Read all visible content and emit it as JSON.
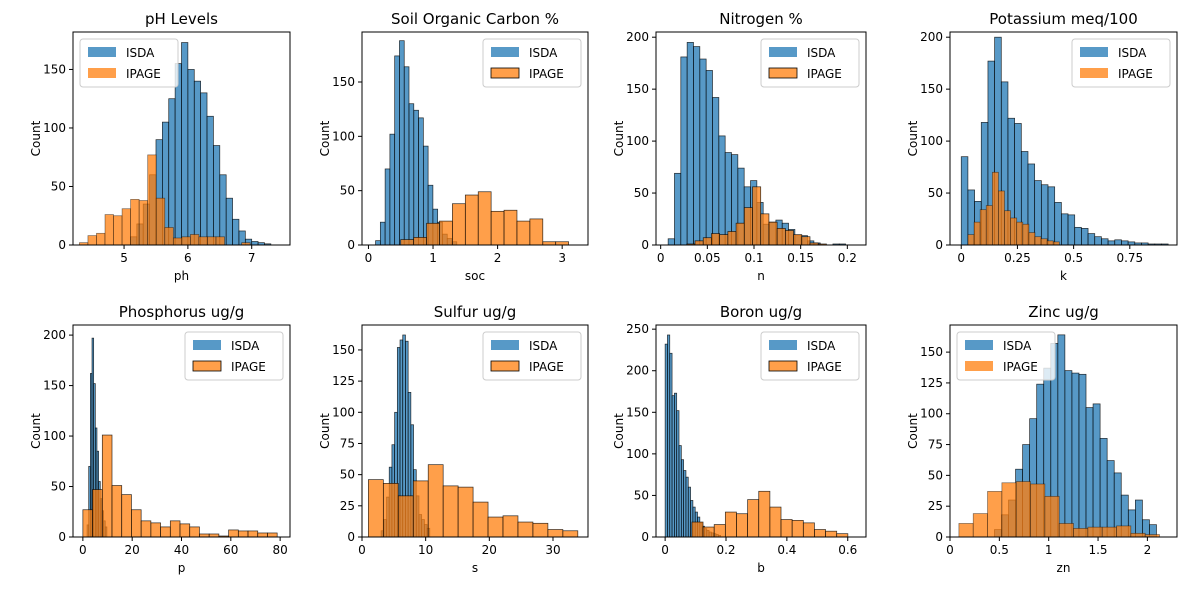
{
  "figure": {
    "rows": 2,
    "cols": 4
  },
  "colors": {
    "ISDA": "#1f77b4",
    "IPAGE": "#ff7f0e"
  },
  "chart_data": [
    {
      "type": "histogram",
      "title": "pH Levels",
      "xlabel": "ph",
      "ylabel": "Count",
      "xlim": [
        4.2,
        7.6
      ],
      "ylim": [
        0,
        182
      ],
      "xticks": [
        5,
        6,
        7
      ],
      "yticks": [
        0,
        50,
        100,
        150
      ],
      "legend": "top-left",
      "legend_outline_series": [],
      "series": [
        {
          "name": "ISDA",
          "start": 5.1,
          "width": 0.1,
          "values": [
            7,
            18,
            35,
            60,
            90,
            105,
            125,
            155,
            173,
            150,
            140,
            130,
            110,
            85,
            60,
            40,
            22,
            12,
            5,
            3,
            2,
            1
          ]
        },
        {
          "name": "IPAGE",
          "start": 4.3,
          "width": 0.1338,
          "values": [
            2,
            8,
            10,
            26,
            25,
            31,
            39,
            38,
            77,
            40,
            15,
            6,
            7,
            9,
            7,
            7,
            7,
            0,
            0,
            2
          ]
        }
      ]
    },
    {
      "type": "histogram",
      "title": "Soil Organic Carbon %",
      "xlabel": "soc",
      "ylabel": "Count",
      "xlim": [
        -0.1,
        3.4
      ],
      "ylim": [
        0,
        196
      ],
      "xticks": [
        0,
        1,
        2,
        3
      ],
      "yticks": [
        0,
        50,
        100,
        150
      ],
      "legend": "top-right",
      "legend_outline_series": [
        "IPAGE"
      ],
      "series": [
        {
          "name": "ISDA",
          "start": 0.11,
          "width": 0.074,
          "values": [
            4,
            21,
            70,
            102,
            174,
            188,
            164,
            130,
            124,
            117,
            91,
            55,
            33,
            21,
            10,
            6,
            3
          ]
        },
        {
          "name": "IPAGE",
          "start": 0.5,
          "width": 0.2,
          "values": [
            5,
            7,
            20,
            22,
            38,
            46,
            49,
            31,
            32,
            22,
            24,
            3,
            3
          ]
        }
      ]
    },
    {
      "type": "histogram",
      "title": "Nitrogen %",
      "xlabel": "n",
      "ylabel": "Count",
      "xlim": [
        -0.005,
        0.22
      ],
      "ylim": [
        0,
        205
      ],
      "xticks": [
        0,
        0.05,
        0.1,
        0.15,
        0.2
      ],
      "yticks": [
        0,
        50,
        100,
        150,
        200
      ],
      "legend": "top-right",
      "legend_outline_series": [
        "IPAGE"
      ],
      "series": [
        {
          "name": "ISDA",
          "start": 0.008,
          "width": 0.00679,
          "values": [
            6,
            69,
            181,
            195,
            191,
            179,
            168,
            142,
            105,
            89,
            87,
            74,
            56,
            62,
            41,
            20,
            22,
            24,
            21,
            15,
            9,
            9,
            4,
            2,
            0,
            0,
            1,
            1
          ]
        },
        {
          "name": "IPAGE",
          "start": 0.028,
          "width": 0.0088,
          "values": [
            1,
            4,
            7,
            11,
            10,
            13,
            21,
            36,
            56,
            30,
            22,
            16,
            14,
            10,
            8,
            2,
            1
          ]
        }
      ]
    },
    {
      "type": "histogram",
      "title": "Potassium meq/100",
      "xlabel": "k",
      "ylabel": "Count",
      "xlim": [
        -0.05,
        0.96
      ],
      "ylim": [
        0,
        205
      ],
      "xticks": [
        0,
        0.25,
        0.5,
        0.75
      ],
      "yticks": [
        0,
        50,
        100,
        150,
        200
      ],
      "legend": "top-right",
      "legend_outline_series": [],
      "series": [
        {
          "name": "ISDA",
          "start": 0,
          "width": 0.0297,
          "values": [
            85,
            53,
            42,
            118,
            177,
            200,
            157,
            122,
            117,
            90,
            78,
            62,
            58,
            56,
            41,
            30,
            29,
            17,
            16,
            11,
            8,
            6,
            4,
            5,
            4,
            3,
            2,
            2,
            1,
            1,
            1
          ]
        },
        {
          "name": "IPAGE",
          "start": 0.03,
          "width": 0.0271,
          "values": [
            10,
            22,
            34,
            38,
            70,
            52,
            33,
            26,
            22,
            20,
            12,
            8,
            6,
            4,
            3
          ]
        }
      ]
    },
    {
      "type": "histogram",
      "title": "Phosphorus ug/g",
      "xlabel": "p",
      "ylabel": "Count",
      "xlim": [
        -4,
        84
      ],
      "ylim": [
        0,
        210
      ],
      "xticks": [
        0,
        20,
        40,
        60,
        80
      ],
      "yticks": [
        0,
        50,
        100,
        150,
        200
      ],
      "legend": "top-right",
      "legend_outline_series": [
        "IPAGE"
      ],
      "series": [
        {
          "name": "ISDA",
          "start": 1.7,
          "width": 0.67,
          "values": [
            12,
            70,
            162,
            197,
            152,
            108,
            85,
            55,
            38,
            26,
            16,
            10
          ]
        },
        {
          "name": "IPAGE",
          "start": 0,
          "width": 3.94,
          "values": [
            27,
            47,
            101,
            51,
            42,
            27,
            16,
            14,
            10,
            16,
            13,
            10,
            3,
            3,
            1,
            7,
            6,
            6,
            4,
            4
          ]
        }
      ]
    },
    {
      "type": "histogram",
      "title": "Sulfur ug/g",
      "xlabel": "s",
      "ylabel": "Count",
      "xlim": [
        0,
        35.5
      ],
      "ylim": [
        0,
        170
      ],
      "xticks": [
        0,
        10,
        20,
        30
      ],
      "yticks": [
        0,
        25,
        50,
        75,
        100,
        125,
        150
      ],
      "legend": "top-right",
      "legend_outline_series": [
        "IPAGE"
      ],
      "series": [
        {
          "name": "ISDA",
          "start": 3.0,
          "width": 0.425,
          "values": [
            5,
            14,
            32,
            56,
            74,
            100,
            152,
            158,
            162,
            157,
            116,
            90,
            54,
            33,
            18,
            14,
            10,
            7
          ]
        },
        {
          "name": "IPAGE",
          "start": 1.0,
          "width": 2.35,
          "values": [
            46,
            43,
            33,
            45,
            58,
            41,
            40,
            28,
            16,
            17,
            12,
            11,
            6,
            5
          ]
        }
      ]
    },
    {
      "type": "histogram",
      "title": "Boron ug/g",
      "xlabel": "b",
      "ylabel": "Count",
      "xlim": [
        -0.03,
        0.66
      ],
      "ylim": [
        0,
        255
      ],
      "xticks": [
        0,
        0.2,
        0.4,
        0.6
      ],
      "yticks": [
        0,
        50,
        100,
        150,
        200,
        250
      ],
      "legend": "top-right",
      "legend_outline_series": [
        "IPAGE"
      ],
      "series": [
        {
          "name": "ISDA",
          "start": 0,
          "width": 0.0076,
          "values": [
            232,
            243,
            221,
            170,
            173,
            152,
            110,
            93,
            80,
            72,
            60,
            44,
            36,
            30,
            24,
            17,
            13,
            10,
            8,
            6,
            5,
            4,
            3,
            2
          ]
        },
        {
          "name": "IPAGE",
          "start": 0.088,
          "width": 0.0366,
          "values": [
            18,
            12,
            15,
            30,
            28,
            45,
            55,
            36,
            21,
            20,
            17,
            9,
            7,
            4
          ]
        }
      ]
    },
    {
      "type": "histogram",
      "title": "Zinc ug/g",
      "xlabel": "zn",
      "ylabel": "Count",
      "xlim": [
        0,
        2.3
      ],
      "ylim": [
        0,
        172
      ],
      "xticks": [
        0,
        0.5,
        1,
        1.5,
        2
      ],
      "yticks": [
        0,
        25,
        50,
        75,
        100,
        125,
        150
      ],
      "legend": "top-left",
      "legend_outline_series": [],
      "series": [
        {
          "name": "ISDA",
          "start": 0.45,
          "width": 0.0714,
          "values": [
            6,
            18,
            30,
            55,
            75,
            96,
            124,
            137,
            157,
            164,
            135,
            133,
            132,
            105,
            108,
            80,
            62,
            52,
            34,
            22,
            30,
            14,
            10
          ]
        },
        {
          "name": "IPAGE",
          "start": 0.09,
          "width": 0.1452,
          "values": [
            11,
            19,
            37,
            44,
            45,
            43,
            33,
            11,
            7,
            8,
            8,
            9,
            3,
            2
          ]
        }
      ]
    }
  ]
}
